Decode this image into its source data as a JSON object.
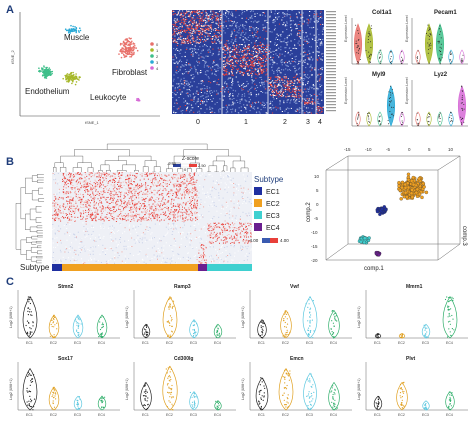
{
  "panels": {
    "a": "A",
    "b": "B",
    "c": "C"
  },
  "tsne": {
    "xlabel": "tSNE_1",
    "ylabel": "tSNE_2",
    "clusters": [
      {
        "label": "Muscle",
        "color": "#29a9d6"
      },
      {
        "label": "Fibroblast",
        "color": "#e8716b"
      },
      {
        "label": "Endothelium",
        "color": "#3fbf8a"
      },
      {
        "label": "Leukocyte",
        "color": "#d66ad6"
      }
    ],
    "legend_ids": [
      "0",
      "1",
      "2",
      "3",
      "4"
    ],
    "legend_colors": [
      "#e8716b",
      "#a6b829",
      "#3fbf8a",
      "#29a9d6",
      "#d66ad6"
    ]
  },
  "heatmap_a": {
    "cluster_labels": [
      "0",
      "1",
      "2",
      "3",
      "4"
    ]
  },
  "violin_a": {
    "ylabel": "Expression Level",
    "genes": [
      "Col1a1",
      "Pecam1",
      "Myl9",
      "Lyz2"
    ]
  },
  "heatmap_b": {
    "zscore_title": "Z-score",
    "zscore_ticks": [
      "-2.50",
      "0",
      "2.50"
    ],
    "colorbar_ticks": [
      "-4.00",
      "4.00"
    ],
    "subtype_row_label": "Subtype",
    "legend_title": "Subtype",
    "subtypes": [
      {
        "label": "EC1",
        "color": "#1f2fa0"
      },
      {
        "label": "EC2",
        "color": "#f0a020"
      },
      {
        "label": "EC3",
        "color": "#3fd0d0"
      },
      {
        "label": "EC4",
        "color": "#6a1f8f"
      }
    ]
  },
  "pca3d": {
    "axis1": "comp.1",
    "axis2": "comp.2",
    "axis3": "comp.3",
    "top_ticks": [
      "-15",
      "-10",
      "-5",
      "0",
      "5",
      "10"
    ],
    "left_ticks": [
      "10",
      "5",
      "0",
      "-5",
      "-10",
      "-15",
      "-20"
    ]
  },
  "violins_c": {
    "ylabel": "Log2 (UMI+1)",
    "x_categories": [
      "EC1",
      "EC2",
      "EC3",
      "EC4"
    ],
    "colors": [
      "#222222",
      "#e0a020",
      "#5ec8e0",
      "#2fae6a"
    ],
    "genes": [
      "Stmn2",
      "Ramp3",
      "Vwf",
      "Mmrn1",
      "Sox17",
      "Cd300lg",
      "Emcn",
      "Plvt"
    ]
  }
}
